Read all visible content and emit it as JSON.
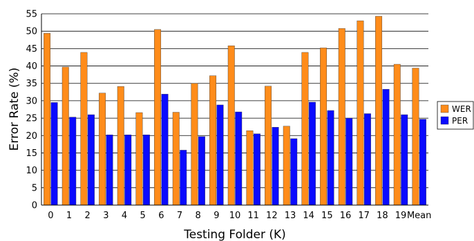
{
  "chart_data": {
    "type": "bar",
    "title": "",
    "xlabel": "Testing Folder (K)",
    "ylabel": "Error Rate (%)",
    "ylim": [
      0,
      55
    ],
    "yticks": [
      0,
      5,
      10,
      15,
      20,
      25,
      30,
      35,
      40,
      45,
      50,
      55
    ],
    "grid": "horizontal",
    "legend_position": "right",
    "categories": [
      "0",
      "1",
      "2",
      "3",
      "4",
      "5",
      "6",
      "7",
      "8",
      "9",
      "10",
      "11",
      "12",
      "13",
      "14",
      "15",
      "16",
      "17",
      "18",
      "19",
      "Mean"
    ],
    "series": [
      {
        "name": "WER",
        "color": "#ff8c1a",
        "values": [
          49.4,
          39.7,
          43.9,
          32.2,
          34.1,
          26.6,
          50.5,
          26.7,
          35.0,
          37.2,
          45.8,
          21.4,
          34.2,
          22.7,
          43.9,
          45.2,
          50.8,
          53.0,
          54.3,
          40.5,
          39.4
        ]
      },
      {
        "name": "PER",
        "color": "#0a0aff",
        "values": [
          29.5,
          25.3,
          26.0,
          20.2,
          20.2,
          20.2,
          31.9,
          15.8,
          19.7,
          28.8,
          26.8,
          20.5,
          22.4,
          19.1,
          29.6,
          27.2,
          25.0,
          26.3,
          33.3,
          26.0,
          24.7
        ]
      }
    ]
  }
}
